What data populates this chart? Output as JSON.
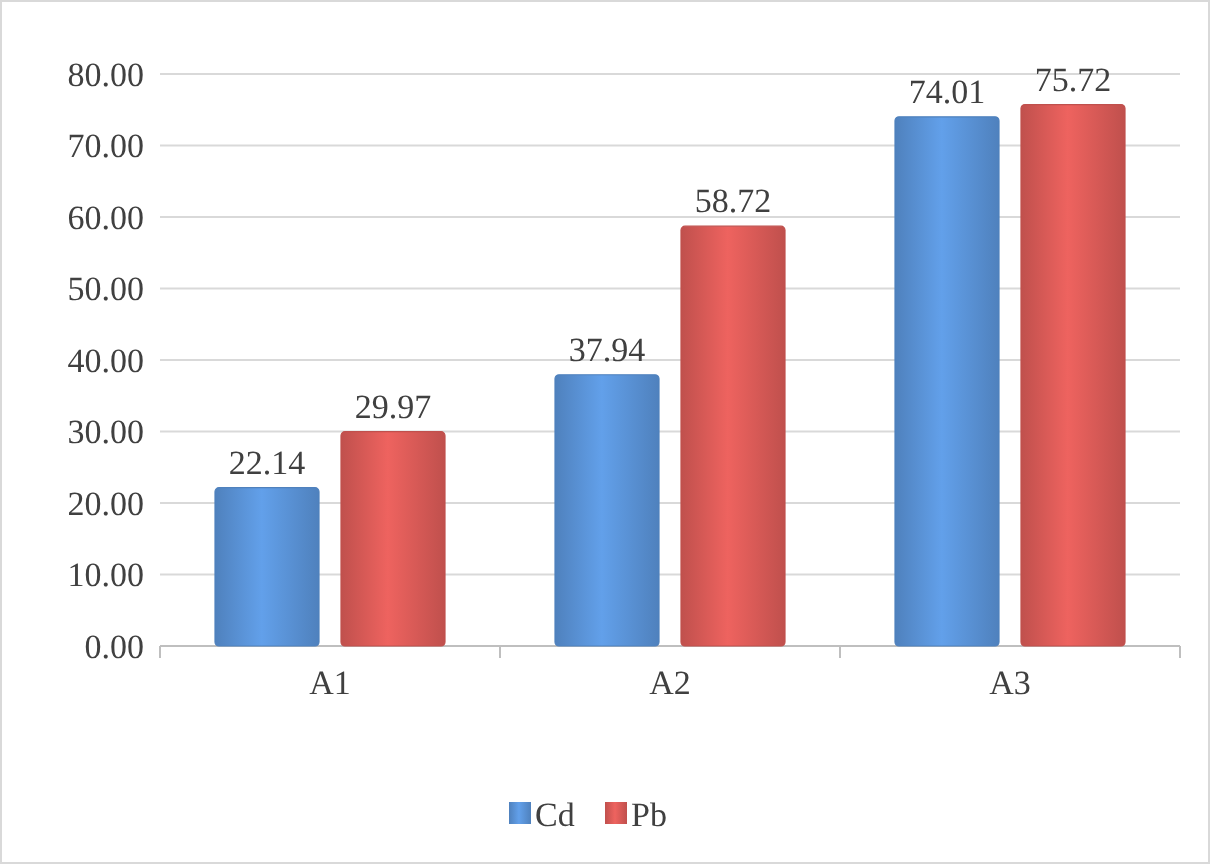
{
  "chart_data": {
    "type": "bar",
    "categories": [
      "A1",
      "A2",
      "A3"
    ],
    "series": [
      {
        "name": "Cd",
        "color": "#4f81bd",
        "values": [
          22.14,
          37.94,
          74.01
        ]
      },
      {
        "name": "Pb",
        "color": "#c0504d",
        "values": [
          29.97,
          58.72,
          75.72
        ]
      }
    ],
    "ylim": [
      0,
      80
    ],
    "yticks": [
      {
        "value": 0,
        "label": "0.00"
      },
      {
        "value": 10,
        "label": "10.00"
      },
      {
        "value": 20,
        "label": "20.00"
      },
      {
        "value": 30,
        "label": "30.00"
      },
      {
        "value": 40,
        "label": "40.00"
      },
      {
        "value": 50,
        "label": "50.00"
      },
      {
        "value": 60,
        "label": "60.00"
      },
      {
        "value": 70,
        "label": "70.00"
      },
      {
        "value": 80,
        "label": "80.00"
      }
    ],
    "grid": "y",
    "legend": "bottom",
    "data_labels": true
  }
}
